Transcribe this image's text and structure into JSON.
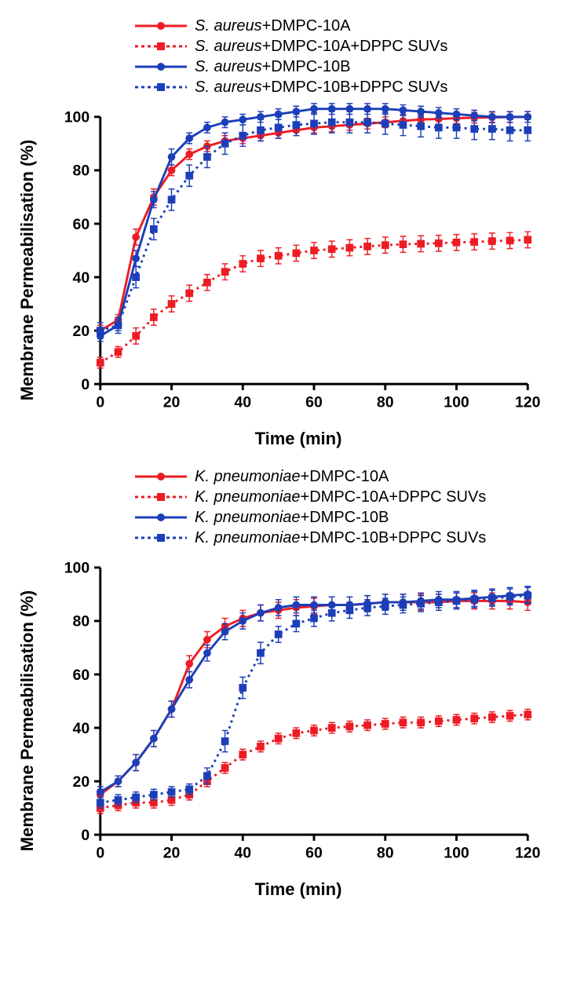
{
  "colors": {
    "red": "#ed1c24",
    "blue": "#1c3fb9",
    "axis": "#000000",
    "bg": "#ffffff"
  },
  "chart_common": {
    "xlabel": "Time (min)",
    "ylabel": "Membrane Permeabilisation (%)",
    "xlim": [
      0,
      120
    ],
    "ylim": [
      0,
      100
    ],
    "xtick_step": 20,
    "ytick_step": 20,
    "line_width": 3,
    "marker_size": 5,
    "error_cap": 4,
    "label_fontsize": 22,
    "tick_fontsize": 20
  },
  "panels": [
    {
      "id": "top",
      "legend_species": "S. aureus",
      "series": [
        {
          "label_suffix": "+DMPC-10A",
          "color_key": "red",
          "dashed": false,
          "marker": "circle",
          "x": [
            0,
            5,
            10,
            15,
            20,
            25,
            30,
            35,
            40,
            45,
            50,
            55,
            60,
            65,
            70,
            75,
            80,
            85,
            90,
            95,
            100,
            105,
            110,
            115,
            120
          ],
          "y": [
            20,
            24,
            55,
            70,
            80,
            86,
            89,
            91,
            92,
            93,
            94,
            95,
            96,
            96.5,
            97,
            97.5,
            98,
            98.5,
            99,
            99.2,
            99.5,
            99.7,
            99.8,
            99.9,
            100
          ],
          "err": [
            2,
            2,
            3,
            3,
            2,
            2,
            2,
            2,
            2,
            2,
            2,
            2,
            2,
            2,
            2,
            2,
            2,
            2,
            2,
            2,
            2,
            2,
            2,
            2,
            2
          ]
        },
        {
          "label_suffix": "+DMPC-10A+DPPC SUVs",
          "color_key": "red",
          "dashed": true,
          "marker": "square",
          "x": [
            0,
            5,
            10,
            15,
            20,
            25,
            30,
            35,
            40,
            45,
            50,
            55,
            60,
            65,
            70,
            75,
            80,
            85,
            90,
            95,
            100,
            105,
            110,
            115,
            120
          ],
          "y": [
            8,
            12,
            18,
            25,
            30,
            34,
            38,
            42,
            45,
            47,
            48,
            49,
            50,
            50.5,
            51,
            51.5,
            52,
            52.3,
            52.5,
            52.7,
            53,
            53.2,
            53.5,
            53.7,
            54
          ],
          "err": [
            2,
            2,
            3,
            3,
            3,
            3,
            3,
            3,
            3,
            3,
            3,
            3,
            3,
            3,
            3,
            3,
            3,
            3,
            3,
            3,
            3,
            3,
            3,
            3,
            3
          ]
        },
        {
          "label_suffix": "+DMPC-10B",
          "color_key": "blue",
          "dashed": false,
          "marker": "circle",
          "x": [
            0,
            5,
            10,
            15,
            20,
            25,
            30,
            35,
            40,
            45,
            50,
            55,
            60,
            65,
            70,
            75,
            80,
            85,
            90,
            95,
            100,
            105,
            110,
            115,
            120
          ],
          "y": [
            18,
            22,
            47,
            69,
            85,
            92,
            96,
            98,
            99,
            100,
            101,
            102,
            103,
            103,
            103,
            103,
            103,
            102.5,
            102,
            101.5,
            101,
            100.5,
            100,
            100,
            100
          ],
          "err": [
            2,
            2,
            3,
            3,
            3,
            2,
            2,
            2,
            2,
            2,
            2,
            2,
            2,
            2,
            2,
            2,
            2,
            2,
            2,
            2,
            2,
            2,
            2,
            2,
            2
          ]
        },
        {
          "label_suffix": "+DMPC-10B+DPPC SUVs",
          "color_key": "blue",
          "dashed": true,
          "marker": "square",
          "x": [
            0,
            5,
            10,
            15,
            20,
            25,
            30,
            35,
            40,
            45,
            50,
            55,
            60,
            65,
            70,
            75,
            80,
            85,
            90,
            95,
            100,
            105,
            110,
            115,
            120
          ],
          "y": [
            20,
            22,
            40,
            58,
            69,
            78,
            85,
            90,
            93,
            95,
            96,
            97,
            97.5,
            98,
            98,
            98,
            97.5,
            97,
            96.5,
            96,
            96,
            95.5,
            95.5,
            95,
            95
          ],
          "err": [
            3,
            3,
            4,
            4,
            4,
            4,
            4,
            4,
            4,
            4,
            4,
            4,
            4,
            4,
            4,
            4,
            4,
            4,
            4,
            4,
            4,
            4,
            4,
            4,
            4
          ]
        }
      ]
    },
    {
      "id": "bottom",
      "legend_species": "K. pneumoniae",
      "series": [
        {
          "label_suffix": "+DMPC-10A",
          "color_key": "red",
          "dashed": false,
          "marker": "circle",
          "x": [
            0,
            5,
            10,
            15,
            20,
            25,
            30,
            35,
            40,
            45,
            50,
            55,
            60,
            65,
            70,
            75,
            80,
            85,
            90,
            95,
            100,
            105,
            110,
            115,
            120
          ],
          "y": [
            15,
            20,
            27,
            36,
            47,
            64,
            73,
            78,
            81,
            83,
            84,
            85,
            85.5,
            86,
            86,
            86.5,
            87,
            87,
            87,
            87,
            87.5,
            87.5,
            87.5,
            87.5,
            87
          ],
          "err": [
            2,
            2,
            3,
            3,
            3,
            3,
            3,
            3,
            3,
            3,
            3,
            3,
            3,
            3,
            3,
            3,
            3,
            3,
            3,
            3,
            3,
            3,
            3,
            3,
            3
          ]
        },
        {
          "label_suffix": "+DMPC-10A+DPPC SUVs",
          "color_key": "red",
          "dashed": true,
          "marker": "square",
          "x": [
            0,
            5,
            10,
            15,
            20,
            25,
            30,
            35,
            40,
            45,
            50,
            55,
            60,
            65,
            70,
            75,
            80,
            85,
            90,
            95,
            100,
            105,
            110,
            115,
            120
          ],
          "y": [
            10,
            11,
            12,
            12,
            13,
            15,
            20,
            25,
            30,
            33,
            36,
            38,
            39,
            40,
            40.5,
            41,
            41.5,
            42,
            42,
            42.5,
            43,
            43.5,
            44,
            44.5,
            45
          ],
          "err": [
            2,
            2,
            2,
            2,
            2,
            2,
            2,
            2,
            2,
            2,
            2,
            2,
            2,
            2,
            2,
            2,
            2,
            2,
            2,
            2,
            2,
            2,
            2,
            2,
            2
          ]
        },
        {
          "label_suffix": "+DMPC-10B",
          "color_key": "blue",
          "dashed": false,
          "marker": "circle",
          "x": [
            0,
            5,
            10,
            15,
            20,
            25,
            30,
            35,
            40,
            45,
            50,
            55,
            60,
            65,
            70,
            75,
            80,
            85,
            90,
            95,
            100,
            105,
            110,
            115,
            120
          ],
          "y": [
            16,
            20,
            27,
            36,
            47,
            58,
            68,
            76,
            80,
            83,
            85,
            86,
            86,
            86,
            86,
            86.5,
            87,
            87,
            87.5,
            88,
            88,
            88.5,
            89,
            89.5,
            90
          ],
          "err": [
            2,
            2,
            3,
            3,
            3,
            3,
            3,
            3,
            3,
            3,
            3,
            3,
            3,
            3,
            3,
            3,
            3,
            3,
            3,
            3,
            3,
            3,
            3,
            3,
            3
          ]
        },
        {
          "label_suffix": "+DMPC-10B+DPPC SUVs",
          "color_key": "blue",
          "dashed": true,
          "marker": "square",
          "x": [
            0,
            5,
            10,
            15,
            20,
            25,
            30,
            35,
            40,
            45,
            50,
            55,
            60,
            65,
            70,
            75,
            80,
            85,
            90,
            95,
            100,
            105,
            110,
            115,
            120
          ],
          "y": [
            12,
            13,
            14,
            15,
            16,
            17,
            22,
            35,
            55,
            68,
            75,
            79,
            81,
            83,
            84,
            85,
            85.5,
            86,
            86.5,
            87,
            87.5,
            88,
            88.5,
            89,
            89.5
          ],
          "err": [
            2,
            2,
            2,
            2,
            2,
            2,
            3,
            4,
            4,
            4,
            3,
            3,
            3,
            3,
            3,
            3,
            3,
            3,
            3,
            3,
            3,
            3,
            3,
            3,
            3
          ]
        }
      ]
    }
  ]
}
